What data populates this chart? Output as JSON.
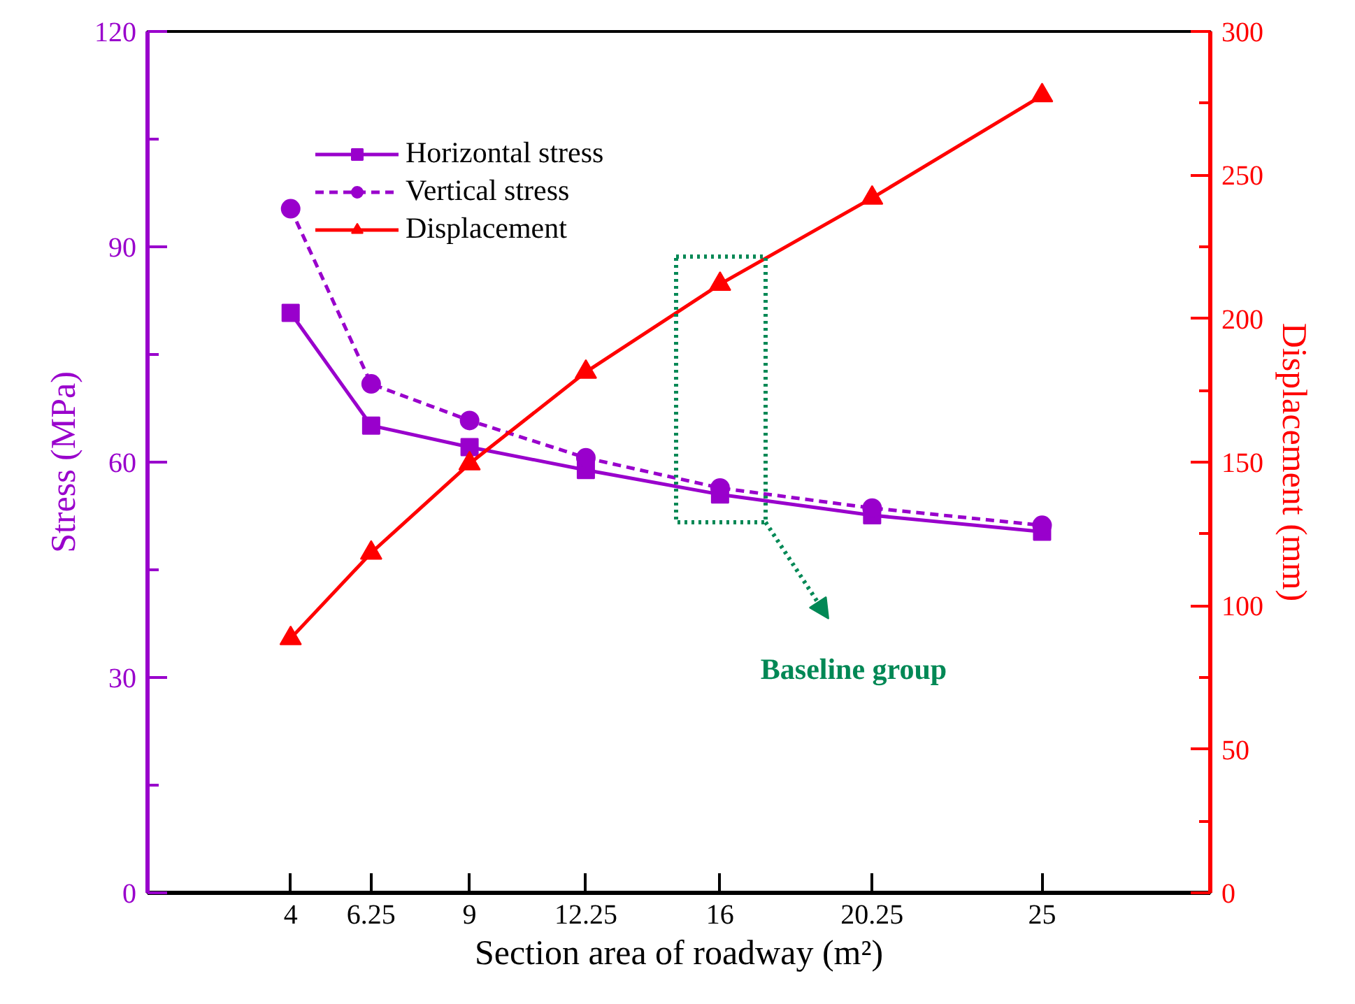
{
  "chart_data": {
    "type": "line",
    "xlabel": "Section area of roadway (m²)",
    "ylabel": "Stress (MPa)",
    "y2label": "Displacement (mm)",
    "x": [
      4,
      6.25,
      9,
      12.25,
      16,
      20.25,
      25
    ],
    "xlim": [
      0,
      29.7
    ],
    "xticks": [
      4,
      6.25,
      9,
      12.25,
      16,
      20.25,
      25
    ],
    "ylim": [
      0,
      120
    ],
    "yticks": [
      0,
      30,
      60,
      90,
      120
    ],
    "y2lim": [
      0,
      300
    ],
    "y2ticks": [
      0,
      50,
      100,
      150,
      200,
      250,
      300
    ],
    "series": [
      {
        "name": "Horizontal stress",
        "color": "#9900cc",
        "marker": "square",
        "line_style": "solid",
        "values": [
          80.8,
          65.1,
          62.1,
          58.9,
          55.5,
          52.6,
          50.3
        ]
      },
      {
        "name": "Vertical stress",
        "color": "#9900cc",
        "marker": "circle",
        "line_style": "dashed",
        "values": [
          95.3,
          70.9,
          65.8,
          60.6,
          56.4,
          53.6,
          51.2
        ]
      },
      {
        "name": "Displacement",
        "color": "#ff0000",
        "marker": "triangle",
        "line_style": "solid",
        "axis": "y2",
        "values": [
          88.6,
          118.4,
          149.5,
          181.4,
          212,
          242,
          277.7
        ]
      }
    ],
    "annotations": [
      "Baseline group"
    ],
    "legend": "top left",
    "grid": false
  }
}
